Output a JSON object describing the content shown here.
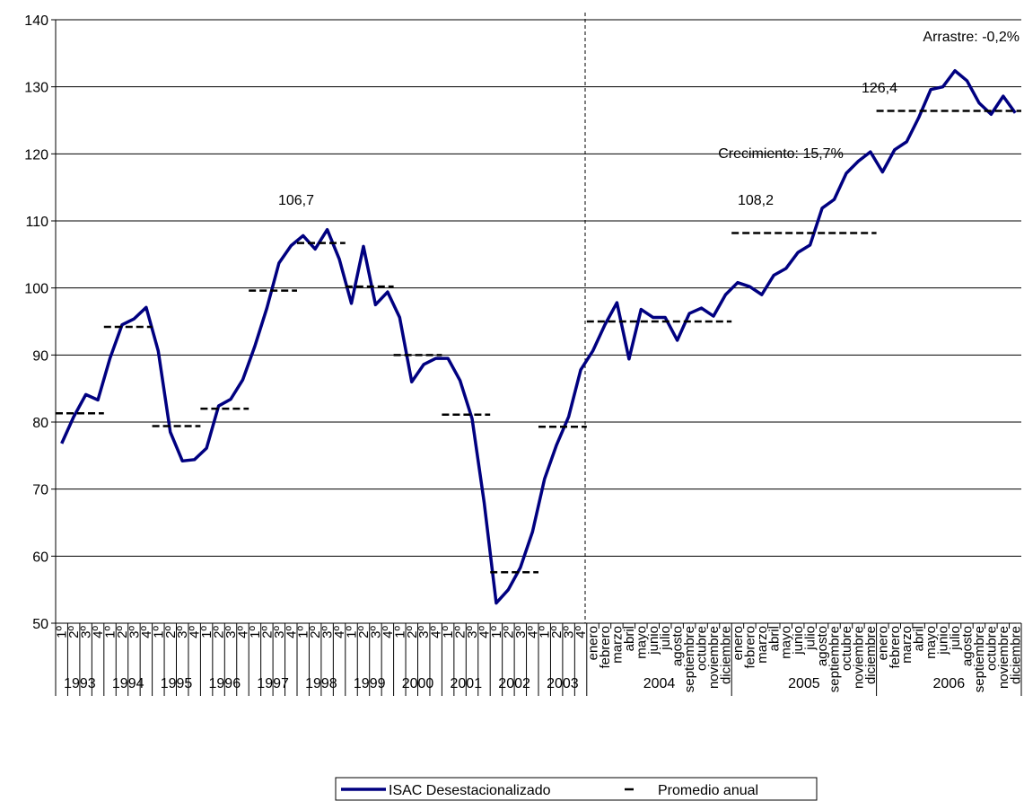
{
  "chart_data": {
    "type": "line",
    "category_groups": [
      {
        "label": "1993",
        "categories": [
          "1º",
          "2º",
          "3º",
          "4º"
        ]
      },
      {
        "label": "1994",
        "categories": [
          "1º",
          "2º",
          "3º",
          "4º"
        ]
      },
      {
        "label": "1995",
        "categories": [
          "1º",
          "2º",
          "3º",
          "4º"
        ]
      },
      {
        "label": "1996",
        "categories": [
          "1º",
          "2º",
          "3º",
          "4º"
        ]
      },
      {
        "label": "1997",
        "categories": [
          "1º",
          "2º",
          "3º",
          "4º"
        ]
      },
      {
        "label": "1998",
        "categories": [
          "1º",
          "2º",
          "3º",
          "4º"
        ]
      },
      {
        "label": "1999",
        "categories": [
          "1º",
          "2º",
          "3º",
          "4º"
        ]
      },
      {
        "label": "2000",
        "categories": [
          "1º",
          "2º",
          "3º",
          "4º"
        ]
      },
      {
        "label": "2001",
        "categories": [
          "1º",
          "2º",
          "3º",
          "4º"
        ]
      },
      {
        "label": "2002",
        "categories": [
          "1º",
          "2º",
          "3º",
          "4º"
        ]
      },
      {
        "label": "2003",
        "categories": [
          "1º",
          "2º",
          "3º",
          "4º"
        ]
      },
      {
        "label": "2004",
        "categories": [
          "enero",
          "febrero",
          "marzo",
          "abril",
          "mayo",
          "junio",
          "julio",
          "agosto",
          "septiembre",
          "octubre",
          "noviembre",
          "diciembre"
        ]
      },
      {
        "label": "2005",
        "categories": [
          "enero",
          "febrero",
          "marzo",
          "abril",
          "mayo",
          "junio",
          "julio",
          "agosto",
          "septiembre",
          "octubre",
          "noviembre",
          "diciembre"
        ]
      },
      {
        "label": "2006",
        "categories": [
          "enero",
          "febrero",
          "marzo",
          "abril",
          "mayo",
          "junio",
          "julio",
          "agosto",
          "septiembre",
          "octubre",
          "noviembre",
          "diciembre"
        ]
      }
    ],
    "series": [
      {
        "name": "ISAC Desestacionalizado",
        "color": "#000080",
        "values": [
          76.8,
          80.8,
          84.1,
          83.3,
          89.5,
          94.5,
          95.4,
          97.1,
          90.6,
          78.5,
          74.2,
          74.4,
          76.1,
          82.4,
          83.4,
          86.3,
          91.3,
          97.0,
          103.7,
          106.3,
          107.8,
          105.8,
          108.7,
          104.3,
          97.7,
          106.2,
          97.5,
          99.4,
          95.6,
          86.0,
          88.6,
          89.5,
          89.5,
          86.2,
          80.5,
          68.0,
          53.0,
          55.0,
          58.3,
          63.6,
          71.5,
          76.6,
          80.8,
          87.8,
          90.6,
          94.5,
          97.8,
          89.4,
          96.8,
          95.6,
          95.6,
          92.2,
          96.2,
          97.0,
          95.8,
          99.0,
          100.8,
          100.2,
          99.0,
          101.9,
          102.9,
          105.3,
          106.4,
          111.9,
          113.2,
          117.1,
          118.9,
          120.3,
          117.3,
          120.6,
          121.8,
          125.4,
          129.6,
          130.0,
          132.4,
          130.9,
          127.6,
          125.9,
          128.6,
          126.1
        ]
      },
      {
        "name": "Promedio anual",
        "color": "#000000",
        "values": [
          81.3,
          94.2,
          79.4,
          82.0,
          99.6,
          106.7,
          100.2,
          90.0,
          81.1,
          57.6,
          79.3,
          95.0,
          108.2,
          126.4
        ]
      }
    ],
    "annotations": [
      "106,7",
      "108,2",
      "126,4",
      "Crecimiento: 15,7%",
      "Arrastre: -0,2%"
    ],
    "ylim": [
      50,
      140
    ],
    "yticks": [
      50,
      60,
      70,
      80,
      90,
      100,
      110,
      120,
      130,
      140
    ],
    "grid": true
  }
}
